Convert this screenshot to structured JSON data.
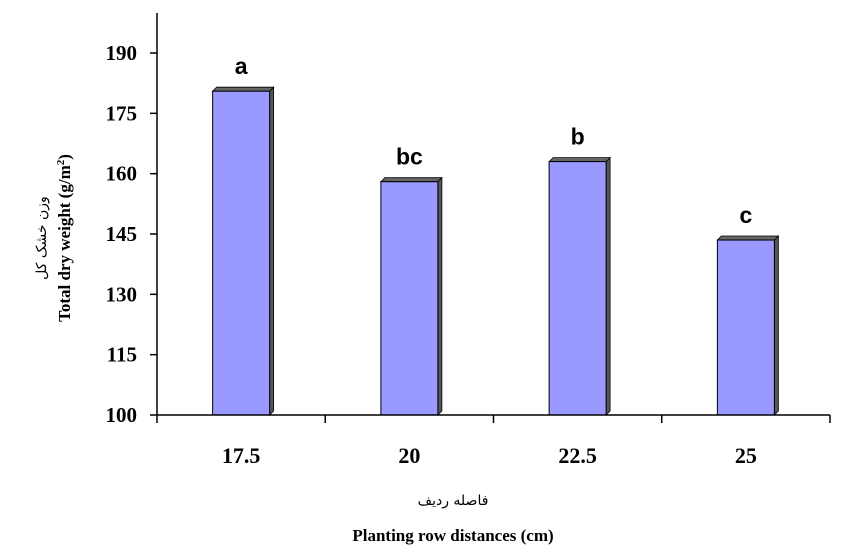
{
  "chart_data": {
    "type": "bar",
    "categories": [
      "17.5",
      "20",
      "22.5",
      "25"
    ],
    "values": [
      180.5,
      158,
      163,
      143.5
    ],
    "data_labels": [
      "a",
      "bc",
      "b",
      "c"
    ],
    "ylim": [
      100,
      190
    ],
    "yticks": [
      "100",
      "115",
      "130",
      "145",
      "160",
      "175",
      "190"
    ],
    "xlabel": "Planting row distances (cm)",
    "xlabel_fa": "فاصله ردیف",
    "ylabel_fa": "وزن خشک کل",
    "ylabel": "Total dry weight (g/m",
    "ylabel_sup": "2",
    "ylabel_end": ")",
    "bar_color": "#9999ff",
    "grid": false,
    "legend": "none"
  }
}
